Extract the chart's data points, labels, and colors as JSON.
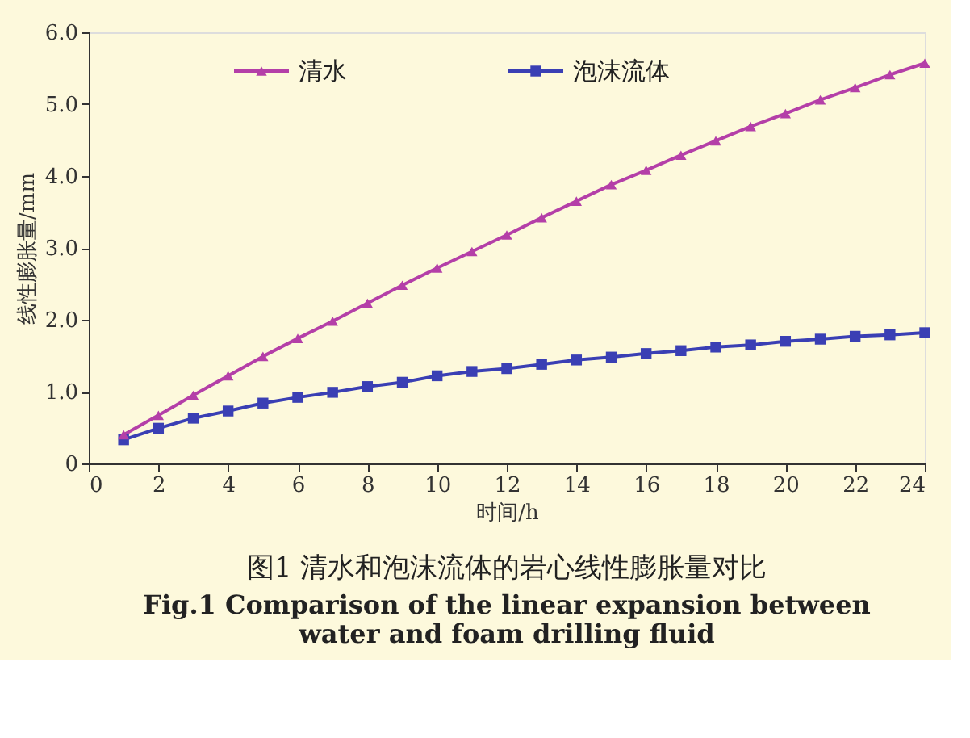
{
  "chart_data": {
    "type": "line",
    "xlabel": "时间/h",
    "ylabel": "线性膨胀量/mm",
    "x": [
      1,
      2,
      3,
      4,
      5,
      6,
      7,
      8,
      9,
      10,
      11,
      12,
      13,
      14,
      15,
      16,
      17,
      18,
      19,
      20,
      21,
      22,
      23,
      24
    ],
    "series": [
      {
        "name": "清水",
        "color": "#b43fa8",
        "marker": "triangle",
        "values": [
          0.4,
          0.67,
          0.95,
          1.22,
          1.49,
          1.74,
          1.98,
          2.23,
          2.48,
          2.72,
          2.95,
          3.18,
          3.42,
          3.65,
          3.88,
          4.08,
          4.29,
          4.49,
          4.69,
          4.87,
          5.06,
          5.23,
          5.41,
          5.57
        ]
      },
      {
        "name": "泡沫流体",
        "color": "#3a3fb4",
        "marker": "square",
        "values": [
          0.33,
          0.49,
          0.63,
          0.73,
          0.84,
          0.92,
          0.99,
          1.07,
          1.13,
          1.22,
          1.28,
          1.32,
          1.38,
          1.44,
          1.48,
          1.53,
          1.57,
          1.62,
          1.65,
          1.7,
          1.73,
          1.77,
          1.79,
          1.82
        ]
      }
    ],
    "xlim": [
      0,
      24
    ],
    "xticks": [
      0,
      2,
      4,
      6,
      8,
      10,
      12,
      14,
      16,
      18,
      20,
      22,
      24
    ],
    "ylim": [
      0,
      6
    ],
    "yticks": [
      0,
      {
        "value": 1,
        "label": "1.0"
      },
      {
        "value": 2,
        "label": "2.0"
      },
      {
        "value": 3,
        "label": "3.0"
      },
      {
        "value": 4,
        "label": "4.0"
      },
      {
        "value": 5,
        "label": "5.0"
      },
      {
        "value": 6,
        "label": "6.0"
      }
    ],
    "legend": "top left",
    "grid": false,
    "line_style": "solid",
    "annotations": [
      "图1   清水和泡沫流体的岩心线性膨胀量对比",
      "Fig.1   Comparison of the linear expansion between water and foam drilling fluid"
    ]
  }
}
